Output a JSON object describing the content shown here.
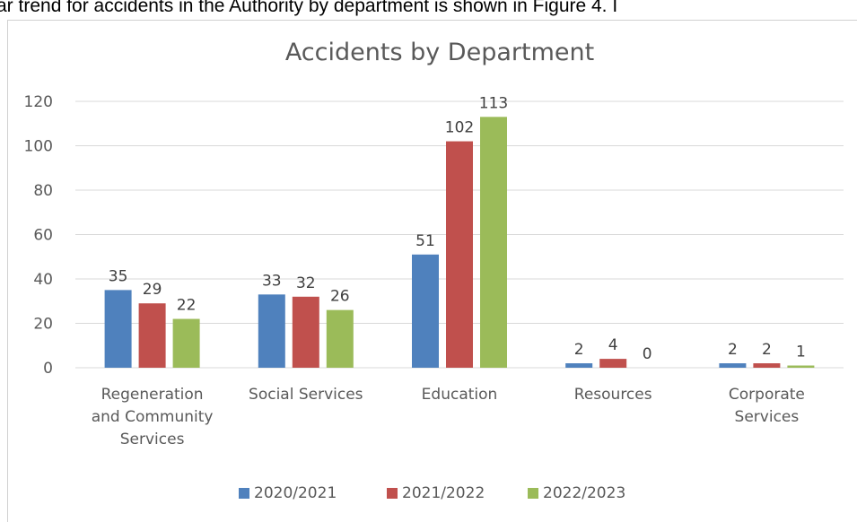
{
  "document": {
    "text_line": "ar trend for accidents in the Authority by department is shown in Figure 4. I"
  },
  "chart_data": {
    "type": "bar",
    "title": "Accidents by Department",
    "categories": [
      [
        "Regeneration",
        "and Community",
        "Services"
      ],
      [
        "Social Services"
      ],
      [
        "Education"
      ],
      [
        "Resources"
      ],
      [
        "Corporate",
        "Services"
      ]
    ],
    "series": [
      {
        "name": "2020/2021",
        "color": "#4f81bd",
        "values": [
          35,
          33,
          51,
          2,
          2
        ]
      },
      {
        "name": "2021/2022",
        "color": "#c0504d",
        "values": [
          29,
          32,
          102,
          4,
          2
        ]
      },
      {
        "name": "2022/2023",
        "color": "#9bbb59",
        "values": [
          22,
          26,
          113,
          0,
          1
        ]
      }
    ],
    "ylim": [
      0,
      120
    ],
    "yticks": [
      0,
      20,
      40,
      60,
      80,
      100,
      120
    ],
    "grid": true,
    "legend": "bottom"
  }
}
